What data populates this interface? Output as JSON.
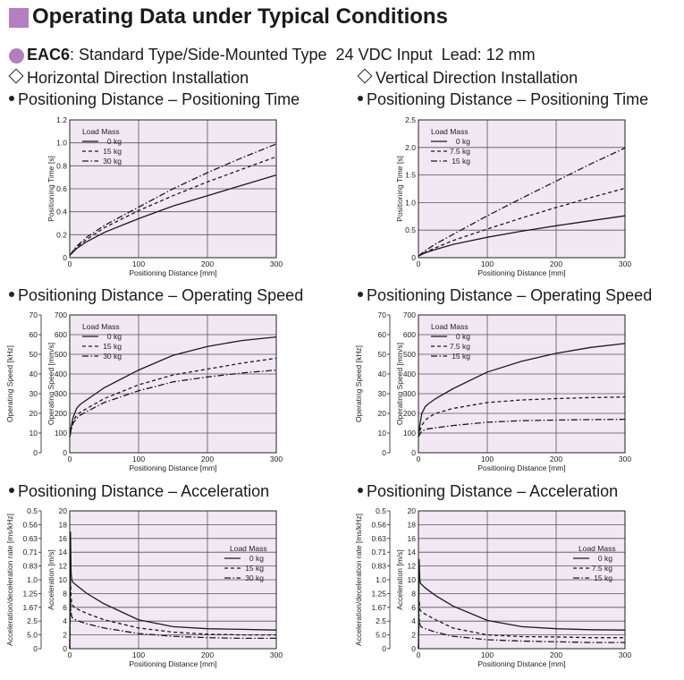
{
  "header": {
    "title": "Operating Data under Typical Conditions",
    "product_model": "EAC6",
    "product_desc": ": Standard Type/Side-Mounted Type  24 VDC Input  Lead: 12 mm"
  },
  "columns": [
    {
      "install_label": "Horizontal Direction Installation"
    },
    {
      "install_label": "Vertical Direction Installation"
    }
  ],
  "sections": {
    "time": "Positioning Distance – Positioning Time",
    "speed": "Positioning Distance – Operating Speed",
    "accel": "Positioning Distance – Acceleration"
  },
  "colors": {
    "plot_bg": "#f1e8f4",
    "grid": "#555555",
    "line": "#1a1a1a",
    "accent": "#b47fc0"
  },
  "chart_data": [
    {
      "id": "h-time",
      "type": "line",
      "xlabel": "Positioning Distance [mm]",
      "ylabel": "Positioning Time [s]",
      "xlim": [
        0,
        300
      ],
      "ylim": [
        0,
        1.2
      ],
      "xticks": [
        0,
        100,
        200,
        300
      ],
      "yticks": [
        0,
        0.2,
        0.4,
        0.6,
        0.8,
        1.0,
        1.2
      ],
      "ytick_labels": [
        "0",
        "0.2",
        "0.4",
        "0.6",
        "0.8",
        "1.0",
        "1.2"
      ],
      "legend_title": "Load Mass",
      "legend_position": "top-left",
      "series": [
        {
          "name": "0 kg",
          "dash": "solid",
          "x": [
            0,
            10,
            25,
            50,
            100,
            150,
            200,
            250,
            300
          ],
          "y": [
            0.02,
            0.08,
            0.14,
            0.22,
            0.34,
            0.45,
            0.54,
            0.63,
            0.72
          ]
        },
        {
          "name": "15 kg",
          "dash": "dashed",
          "x": [
            0,
            10,
            25,
            50,
            100,
            150,
            200,
            250,
            300
          ],
          "y": [
            0.02,
            0.09,
            0.16,
            0.26,
            0.41,
            0.54,
            0.66,
            0.77,
            0.88
          ]
        },
        {
          "name": "30 kg",
          "dash": "dashdot",
          "x": [
            0,
            10,
            25,
            50,
            100,
            150,
            200,
            250,
            300
          ],
          "y": [
            0.02,
            0.1,
            0.18,
            0.28,
            0.44,
            0.6,
            0.74,
            0.87,
            0.99
          ]
        }
      ]
    },
    {
      "id": "v-time",
      "type": "line",
      "xlabel": "Positioning Distance [mm]",
      "ylabel": "Positioning Time [s]",
      "xlim": [
        0,
        300
      ],
      "ylim": [
        0,
        2.5
      ],
      "xticks": [
        0,
        100,
        200,
        300
      ],
      "yticks": [
        0,
        0.5,
        1.0,
        1.5,
        2.0,
        2.5
      ],
      "ytick_labels": [
        "0",
        "0.5",
        "1.0",
        "1.5",
        "2.0",
        "2.5"
      ],
      "legend_title": "Load Mass",
      "legend_position": "top-left",
      "series": [
        {
          "name": "0 kg",
          "dash": "solid",
          "x": [
            0,
            10,
            25,
            50,
            100,
            150,
            200,
            250,
            300
          ],
          "y": [
            0.03,
            0.09,
            0.15,
            0.24,
            0.37,
            0.48,
            0.58,
            0.67,
            0.76
          ]
        },
        {
          "name": "7.5 kg",
          "dash": "dashed",
          "x": [
            0,
            10,
            25,
            50,
            100,
            150,
            200,
            250,
            300
          ],
          "y": [
            0.03,
            0.1,
            0.18,
            0.31,
            0.52,
            0.72,
            0.91,
            1.09,
            1.26
          ]
        },
        {
          "name": "15 kg",
          "dash": "dashdot",
          "x": [
            0,
            10,
            25,
            50,
            100,
            150,
            200,
            250,
            300
          ],
          "y": [
            0.03,
            0.13,
            0.25,
            0.42,
            0.76,
            1.08,
            1.39,
            1.7,
            1.99
          ]
        }
      ]
    },
    {
      "id": "h-speed",
      "type": "line",
      "xlabel": "Positioning Distance [mm]",
      "ylabel": "Operating Speed [mm/s]",
      "ylabel2": "Operating Speed [kHz]",
      "xlim": [
        0,
        300
      ],
      "ylim": [
        0,
        700
      ],
      "xticks": [
        0,
        100,
        200,
        300
      ],
      "yticks": [
        0,
        100,
        200,
        300,
        400,
        500,
        600,
        700
      ],
      "ytick_labels": [
        "0",
        "100",
        "200",
        "300",
        "400",
        "500",
        "600",
        "700"
      ],
      "y2tick_labels": [
        "0",
        "10",
        "20",
        "30",
        "40",
        "50",
        "60",
        "70"
      ],
      "legend_title": "Load Mass",
      "legend_position": "top-left",
      "series": [
        {
          "name": "0 kg",
          "dash": "solid",
          "x": [
            0,
            2,
            5,
            10,
            15,
            25,
            50,
            100,
            150,
            200,
            250,
            300
          ],
          "y": [
            80,
            130,
            180,
            225,
            245,
            270,
            330,
            420,
            495,
            540,
            570,
            588
          ]
        },
        {
          "name": "15 kg",
          "dash": "dashed",
          "x": [
            0,
            2,
            5,
            10,
            15,
            25,
            50,
            100,
            150,
            200,
            250,
            300
          ],
          "y": [
            80,
            120,
            160,
            190,
            205,
            225,
            275,
            345,
            395,
            425,
            455,
            480
          ]
        },
        {
          "name": "30 kg",
          "dash": "dashdot",
          "x": [
            0,
            2,
            5,
            10,
            15,
            25,
            50,
            100,
            150,
            200,
            250,
            300
          ],
          "y": [
            80,
            115,
            150,
            175,
            190,
            210,
            255,
            315,
            360,
            385,
            405,
            420
          ]
        }
      ]
    },
    {
      "id": "v-speed",
      "type": "line",
      "xlabel": "Positioning Distance [mm]",
      "ylabel": "Operating Speed [mm/s]",
      "ylabel2": "Operating Speed [kHz]",
      "xlim": [
        0,
        300
      ],
      "ylim": [
        0,
        700
      ],
      "xticks": [
        0,
        100,
        200,
        300
      ],
      "yticks": [
        0,
        100,
        200,
        300,
        400,
        500,
        600,
        700
      ],
      "ytick_labels": [
        "0",
        "100",
        "200",
        "300",
        "400",
        "500",
        "600",
        "700"
      ],
      "y2tick_labels": [
        "0",
        "10",
        "20",
        "30",
        "40",
        "50",
        "60",
        "70"
      ],
      "legend_title": "Load Mass",
      "legend_position": "top-left",
      "series": [
        {
          "name": "0 kg",
          "dash": "solid",
          "x": [
            0,
            2,
            5,
            10,
            15,
            25,
            50,
            100,
            150,
            200,
            250,
            300
          ],
          "y": [
            80,
            140,
            200,
            235,
            250,
            275,
            325,
            410,
            465,
            505,
            535,
            555
          ]
        },
        {
          "name": "7.5 kg",
          "dash": "dashed",
          "x": [
            0,
            2,
            5,
            10,
            15,
            25,
            50,
            100,
            150,
            200,
            250,
            300
          ],
          "y": [
            80,
            110,
            140,
            165,
            180,
            200,
            225,
            255,
            268,
            275,
            280,
            283
          ]
        },
        {
          "name": "15 kg",
          "dash": "dashdot",
          "x": [
            0,
            2,
            5,
            10,
            15,
            25,
            50,
            100,
            150,
            200,
            250,
            300
          ],
          "y": [
            80,
            95,
            110,
            118,
            122,
            127,
            138,
            155,
            163,
            166,
            168,
            170
          ]
        }
      ]
    },
    {
      "id": "h-accel",
      "type": "line",
      "xlabel": "Positioning Distance [mm]",
      "ylabel": "Acceleration [m/s]",
      "ylabel2": "Acceleration/deceleration rate [ms/kHz]",
      "xlim": [
        0,
        300
      ],
      "ylim": [
        0,
        20
      ],
      "xticks": [
        0,
        100,
        200,
        300
      ],
      "yticks": [
        0,
        2,
        4,
        6,
        8,
        10,
        12,
        14,
        16,
        18,
        20
      ],
      "ytick_labels": [
        "0",
        "2",
        "4",
        "6",
        "8",
        "10",
        "12",
        "14",
        "16",
        "18",
        "20"
      ],
      "y2tick_labels": [
        "0",
        "5.0",
        "2.5",
        "1.67",
        "1.25",
        "1.0",
        "0.83",
        "0.71",
        "0.63",
        "0.56",
        "0.5"
      ],
      "legend_title": "Load Mass",
      "legend_position": "right",
      "series": [
        {
          "name": "0 kg",
          "dash": "solid",
          "x": [
            0,
            1,
            2,
            3,
            5,
            10,
            25,
            50,
            100,
            150,
            200,
            250,
            300
          ],
          "y": [
            0,
            17,
            11,
            10,
            9.6,
            9.2,
            8,
            6.5,
            4.2,
            3.2,
            2.9,
            2.8,
            2.7
          ]
        },
        {
          "name": "15 kg",
          "dash": "dashed",
          "x": [
            0,
            1,
            2,
            3,
            5,
            10,
            25,
            50,
            100,
            150,
            200,
            250,
            300
          ],
          "y": [
            0,
            10,
            7.5,
            6.5,
            6.2,
            5.8,
            5.1,
            4.2,
            3.0,
            2.4,
            2.1,
            2.0,
            2.0
          ]
        },
        {
          "name": "30 kg",
          "dash": "dashdot",
          "x": [
            0,
            1,
            2,
            3,
            5,
            10,
            25,
            50,
            100,
            150,
            200,
            250,
            300
          ],
          "y": [
            0,
            7,
            5.2,
            4.6,
            4.4,
            4.1,
            3.6,
            3.0,
            2.2,
            1.8,
            1.6,
            1.5,
            1.5
          ]
        }
      ]
    },
    {
      "id": "v-accel",
      "type": "line",
      "xlabel": "Positioning Distance [mm]",
      "ylabel": "Acceleration [m/s]",
      "ylabel2": "Acceleration/deceleration rate [ms/kHz]",
      "xlim": [
        0,
        300
      ],
      "ylim": [
        0,
        20
      ],
      "xticks": [
        0,
        100,
        200,
        300
      ],
      "yticks": [
        0,
        2,
        4,
        6,
        8,
        10,
        12,
        14,
        16,
        18,
        20
      ],
      "ytick_labels": [
        "0",
        "2",
        "4",
        "6",
        "8",
        "10",
        "12",
        "14",
        "16",
        "18",
        "20"
      ],
      "y2tick_labels": [
        "0",
        "5.0",
        "2.5",
        "1.67",
        "1.25",
        "1.0",
        "0.83",
        "0.71",
        "0.63",
        "0.56",
        "0.5"
      ],
      "legend_title": "Load Mass",
      "legend_position": "right",
      "series": [
        {
          "name": "0 kg",
          "dash": "solid",
          "x": [
            0,
            1,
            2,
            3,
            5,
            10,
            25,
            50,
            100,
            150,
            200,
            250,
            300
          ],
          "y": [
            0,
            13,
            10,
            9.5,
            9.3,
            8.8,
            7.7,
            6.2,
            4.1,
            3.2,
            2.9,
            2.75,
            2.7
          ]
        },
        {
          "name": "7.5 kg",
          "dash": "dashed",
          "x": [
            0,
            1,
            2,
            3,
            5,
            10,
            25,
            50,
            100,
            150,
            200,
            250,
            300
          ],
          "y": [
            0,
            7,
            5.8,
            5.5,
            5.3,
            5.0,
            4.2,
            3.0,
            2.0,
            1.75,
            1.7,
            1.6,
            1.6
          ]
        },
        {
          "name": "15 kg",
          "dash": "dashdot",
          "x": [
            0,
            1,
            2,
            3,
            5,
            10,
            25,
            50,
            100,
            150,
            200,
            250,
            300
          ],
          "y": [
            0,
            4.5,
            3.6,
            3.3,
            3.1,
            2.9,
            2.4,
            1.8,
            1.3,
            1.1,
            1.0,
            0.9,
            0.9
          ]
        }
      ]
    }
  ]
}
